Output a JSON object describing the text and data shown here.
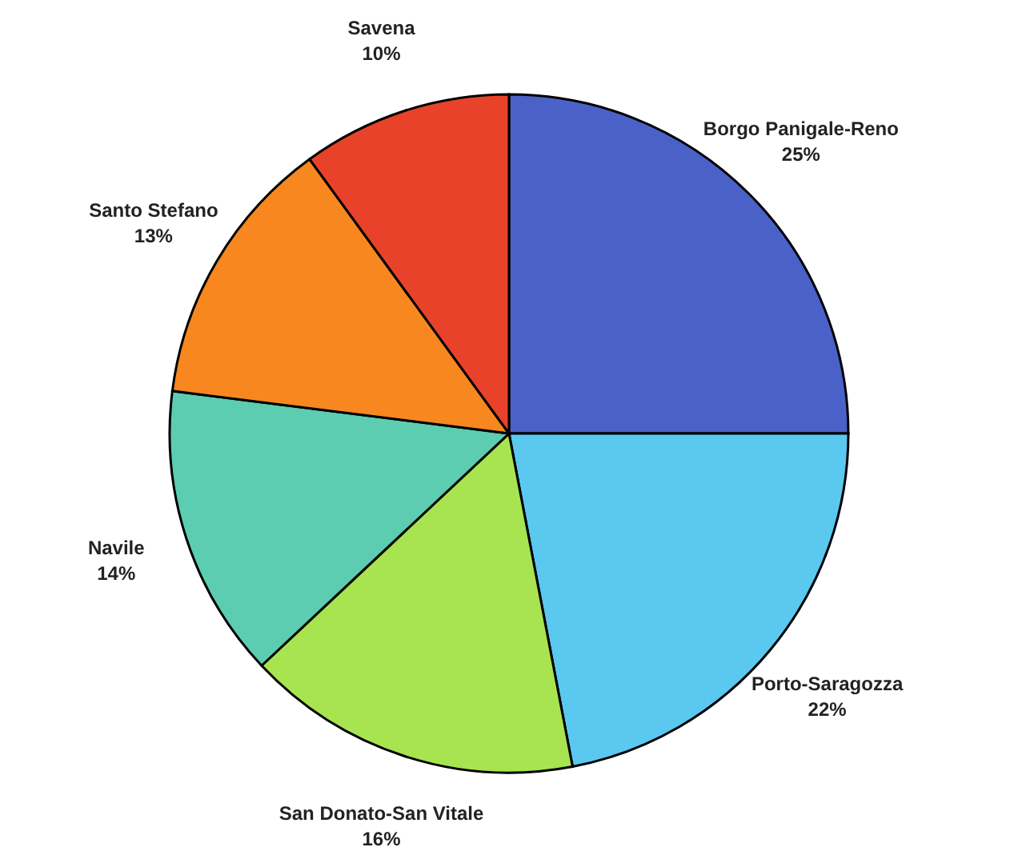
{
  "chart_data": {
    "type": "pie",
    "categories": [
      "Borgo Panigale-Reno",
      "Porto-Saragozza",
      "San Donato-San Vitale",
      "Navile",
      "Santo Stefano",
      "Savena"
    ],
    "values": [
      25,
      22,
      16,
      14,
      13,
      10
    ],
    "value_labels": [
      "25%",
      "22%",
      "16%",
      "14%",
      "13%",
      "10%"
    ],
    "colors": [
      "#4a62c8",
      "#5bc8f0",
      "#a8e44f",
      "#5ccdb0",
      "#f7871e",
      "#e8432a"
    ]
  }
}
